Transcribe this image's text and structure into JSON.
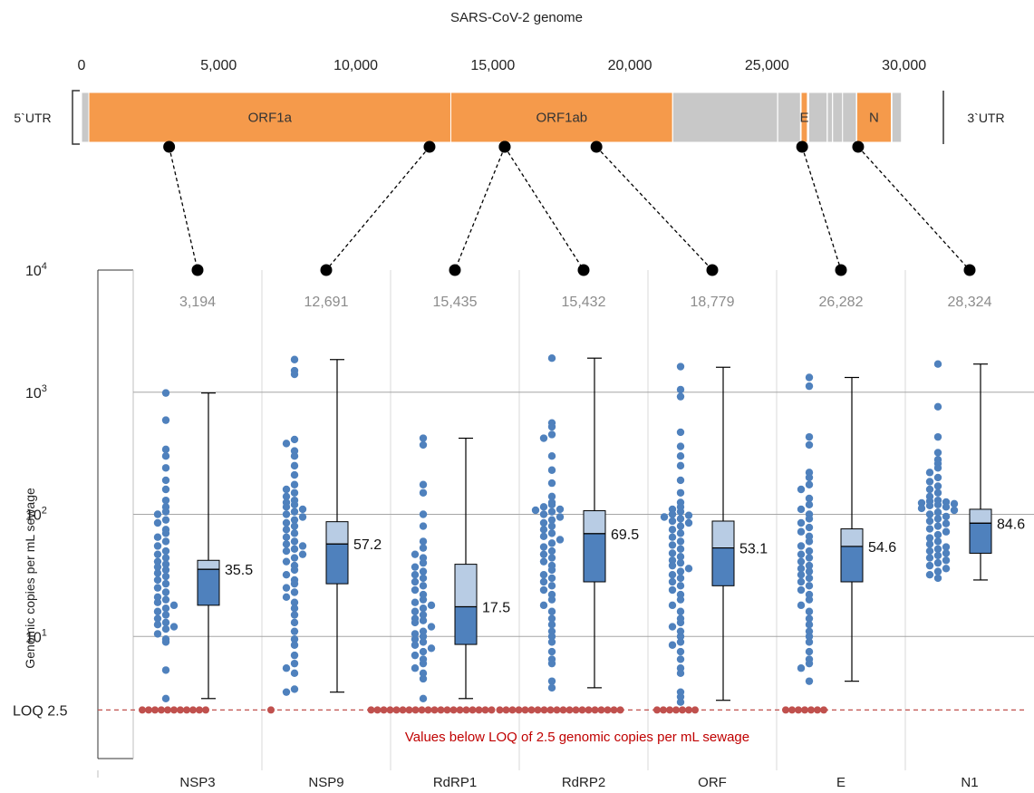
{
  "genome": {
    "title": "SARS-CoV-2  genome",
    "axis_ticks": [
      0,
      5000,
      10000,
      15000,
      20000,
      25000,
      30000
    ],
    "axis_tick_labels": [
      "0",
      "5,000",
      "10,000",
      "15,000",
      "20,000",
      "25,000",
      "30,000"
    ],
    "utr5_label": "5`UTR",
    "utr3_label": "3`UTR",
    "segments": [
      {
        "label": "",
        "start": 0,
        "end": 265,
        "color": "#c8c8c8"
      },
      {
        "label": "ORF1a",
        "start": 265,
        "end": 13468,
        "color": "#f59a4b"
      },
      {
        "label": "ORF1ab",
        "start": 13468,
        "end": 21555,
        "color": "#f59a4b"
      },
      {
        "label": "",
        "start": 21563,
        "end": 25384,
        "color": "#c8c8c8"
      },
      {
        "label": "",
        "start": 25393,
        "end": 26220,
        "color": "#c8c8c8"
      },
      {
        "label": "E",
        "start": 26245,
        "end": 26472,
        "color": "#f59a4b"
      },
      {
        "label": "",
        "start": 26523,
        "end": 27191,
        "color": "#c8c8c8"
      },
      {
        "label": "",
        "start": 27202,
        "end": 27387,
        "color": "#c8c8c8"
      },
      {
        "label": "",
        "start": 27394,
        "end": 27759,
        "color": "#c8c8c8"
      },
      {
        "label": "",
        "start": 27756,
        "end": 28259,
        "color": "#c8c8c8"
      },
      {
        "label": "N",
        "start": 28274,
        "end": 29533,
        "color": "#f59a4b"
      },
      {
        "label": "",
        "start": 29558,
        "end": 29903,
        "color": "#c8c8c8"
      }
    ],
    "assay_positions": [
      3194,
      12691,
      15435,
      15432,
      18779,
      26282,
      28324
    ]
  },
  "chart_data": {
    "type": "scatter",
    "ylabel": "Genomic copies per mL sewage",
    "yscale": "log",
    "ylim": [
      1,
      10000
    ],
    "y_ticks": [
      {
        "label": "10",
        "sup": "4",
        "value": 10000
      },
      {
        "label": "10",
        "sup": "3",
        "value": 1000
      },
      {
        "label": "10",
        "sup": "2",
        "value": 100
      },
      {
        "label": "10",
        "sup": "1",
        "value": 10
      },
      {
        "label": "LOQ  2.5",
        "sup": "",
        "value": 2.5
      }
    ],
    "loq": 2.5,
    "loq_note": "Values below LOQ of 2.5 genomic copies per mL sewage",
    "categories": [
      "NSP3",
      "NSP9",
      "RdRP1",
      "RdRP2",
      "ORF",
      "E",
      "N1"
    ],
    "positions_label": [
      "3,194",
      "12,691",
      "15,435",
      "15,432",
      "18,779",
      "26,282",
      "28,324"
    ],
    "series": [
      {
        "name": "NSP3",
        "values": [
          985,
          590,
          340,
          300,
          240,
          190,
          160,
          130,
          115,
          105,
          100,
          90,
          85,
          75,
          70,
          65,
          60,
          55,
          50,
          47,
          44,
          41,
          39,
          37,
          35,
          33,
          31,
          29,
          27,
          25,
          23,
          21,
          20,
          19,
          18,
          17,
          16,
          15,
          14,
          13,
          12.5,
          12,
          11.5,
          10.5,
          9.5,
          9,
          5.3,
          3.1
        ],
        "below_loq": 11,
        "box": {
          "whisker_low": 3.1,
          "q1": 18,
          "median": 35.5,
          "mean": 42,
          "q3": 42,
          "whisker_high": 985
        },
        "label": "35.5"
      },
      {
        "name": "NSP9",
        "values": [
          1850,
          1500,
          1400,
          410,
          380,
          330,
          300,
          250,
          210,
          175,
          160,
          150,
          140,
          130,
          125,
          120,
          115,
          110,
          105,
          100,
          95,
          90,
          85,
          80,
          75,
          70,
          65,
          60,
          57,
          55,
          52,
          50,
          47,
          44,
          41,
          38,
          35,
          32,
          29,
          27,
          25,
          23,
          21,
          19,
          17,
          15,
          13,
          11,
          9.5,
          8.5,
          7,
          6,
          5.5,
          5,
          3.7,
          3.5
        ],
        "below_loq": 1,
        "box": {
          "whisker_low": 3.5,
          "q1": 27,
          "median": 57.2,
          "mean": 87,
          "q3": 87,
          "whisker_high": 1850
        },
        "label": "57.2"
      },
      {
        "name": "RdRP1",
        "values": [
          420,
          370,
          175,
          150,
          100,
          80,
          60,
          53,
          47,
          44,
          40,
          37,
          34,
          32,
          30,
          28,
          26,
          24,
          22,
          20,
          19,
          18,
          17,
          16,
          15,
          14,
          13.5,
          13,
          12,
          11,
          10.5,
          10,
          9.5,
          9,
          8.5,
          8,
          7.5,
          7,
          6.5,
          6,
          5.5,
          5,
          4.5,
          3.1
        ],
        "below_loq": 20,
        "box": {
          "whisker_low": 3.1,
          "q1": 8.6,
          "median": 17.5,
          "mean": 39,
          "q3": 39,
          "whisker_high": 420
        },
        "label": "17.5"
      },
      {
        "name": "RdRP2",
        "values": [
          1900,
          560,
          520,
          450,
          420,
          300,
          230,
          180,
          140,
          125,
          120,
          115,
          110,
          108,
          105,
          100,
          95,
          90,
          85,
          80,
          75,
          70,
          66,
          62,
          58,
          54,
          50,
          47,
          44,
          41,
          38,
          35,
          32,
          30,
          28,
          26,
          24,
          22,
          20,
          18,
          16,
          14,
          12.5,
          11,
          10,
          9,
          7.5,
          6.5,
          6,
          4.3,
          3.8
        ],
        "below_loq": 20,
        "box": {
          "whisker_low": 3.8,
          "q1": 28,
          "median": 69.5,
          "mean": 107,
          "q3": 107,
          "whisker_high": 1900
        },
        "label": "69.5"
      },
      {
        "name": "ORF",
        "values": [
          1620,
          1050,
          920,
          470,
          360,
          300,
          250,
          190,
          150,
          125,
          115,
          110,
          105,
          100,
          98,
          95,
          92,
          88,
          85,
          80,
          75,
          70,
          65,
          60,
          56,
          52,
          48,
          45,
          42,
          40,
          38,
          36,
          34,
          32,
          30,
          28,
          26,
          24,
          22,
          20,
          18,
          16,
          14,
          13,
          12,
          11,
          10,
          9,
          8.5,
          7.5,
          6.5,
          5.5,
          5,
          3.5,
          3.2,
          2.9
        ],
        "below_loq": 7,
        "box": {
          "whisker_low": 3,
          "q1": 26,
          "median": 53.1,
          "mean": 88,
          "q3": 88,
          "whisker_high": 1600
        },
        "label": "53.1"
      },
      {
        "name": "E",
        "values": [
          1320,
          1120,
          430,
          370,
          220,
          200,
          175,
          160,
          135,
          120,
          110,
          100,
          92,
          85,
          78,
          72,
          66,
          60,
          55,
          50,
          47,
          44,
          41,
          38,
          36,
          34,
          32,
          30,
          28,
          26,
          24,
          22,
          20,
          18,
          16,
          14,
          12.5,
          11,
          10,
          9,
          7.5,
          6.5,
          6,
          5.5,
          4.3
        ],
        "below_loq": 7,
        "box": {
          "whisker_low": 4.3,
          "q1": 28,
          "median": 54.6,
          "mean": 76,
          "q3": 76,
          "whisker_high": 1320
        },
        "label": "54.6"
      },
      {
        "name": "N1",
        "values": [
          1700,
          760,
          430,
          320,
          280,
          260,
          240,
          220,
          200,
          185,
          170,
          160,
          150,
          140,
          130,
          128,
          126,
          124,
          122,
          120,
          118,
          115,
          112,
          108,
          104,
          100,
          96,
          92,
          88,
          84,
          80,
          76,
          72,
          68,
          64,
          60,
          57,
          54,
          52,
          50,
          48,
          46,
          44,
          42,
          40,
          38,
          36,
          34,
          32,
          30
        ],
        "below_loq": 0,
        "box": {
          "whisker_low": 29,
          "q1": 48,
          "median": 84.6,
          "mean": 110,
          "q3": 110,
          "whisker_high": 1700
        },
        "label": "84.6"
      }
    ],
    "colors": {
      "dot": "#4f81bd",
      "loq_dot": "#c0504d",
      "loq_line": "#c0504d",
      "box_lower": "#4f81bd",
      "box_upper": "#b8cce4",
      "orf": "#f59a4b",
      "other_gene": "#c8c8c8",
      "position_text": "#8c8c8c",
      "note_text": "#c00000",
      "grid": "#a6a6a6"
    }
  }
}
